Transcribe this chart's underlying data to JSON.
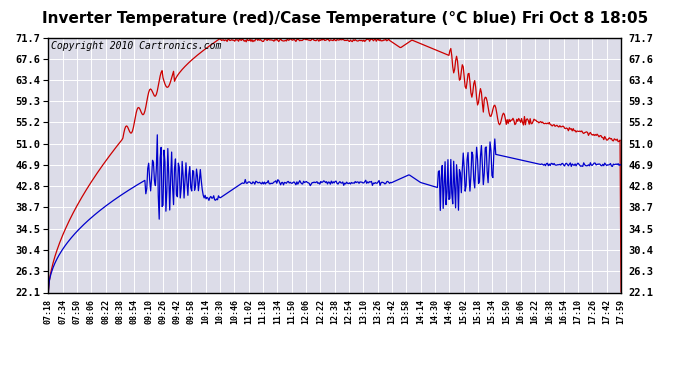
{
  "title": "Inverter Temperature (red)/Case Temperature (°C blue) Fri Oct 8 18:05",
  "copyright": "Copyright 2010 Cartronics.com",
  "yticks": [
    22.1,
    26.3,
    30.4,
    34.5,
    38.7,
    42.8,
    46.9,
    51.0,
    55.2,
    59.3,
    63.4,
    67.6,
    71.7
  ],
  "ymin": 22.1,
  "ymax": 71.7,
  "bg_color": "#ffffff",
  "plot_bg_color": "#dcdce8",
  "grid_color": "#ffffff",
  "red_color": "#cc0000",
  "blue_color": "#0000cc",
  "title_fontsize": 11,
  "copyright_fontsize": 7,
  "xtick_labels": [
    "07:18",
    "07:34",
    "07:50",
    "08:06",
    "08:22",
    "08:38",
    "08:54",
    "09:10",
    "09:26",
    "09:42",
    "09:58",
    "10:14",
    "10:30",
    "10:46",
    "11:02",
    "11:18",
    "11:34",
    "11:50",
    "12:06",
    "12:22",
    "12:38",
    "12:54",
    "13:10",
    "13:26",
    "13:42",
    "13:58",
    "14:14",
    "14:30",
    "14:46",
    "15:02",
    "15:18",
    "15:34",
    "15:50",
    "16:06",
    "16:22",
    "16:38",
    "16:54",
    "17:10",
    "17:26",
    "17:42",
    "17:59"
  ],
  "n_xticks": 41
}
